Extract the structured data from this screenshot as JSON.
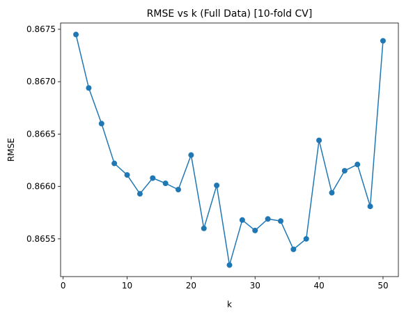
{
  "chart_data": {
    "type": "line",
    "title": "RMSE vs k (Full Data) [10-fold CV]",
    "xlabel": "k",
    "ylabel": "RMSE",
    "xlim": [
      -0.4,
      52.4
    ],
    "ylim": [
      0.86514,
      0.86756
    ],
    "xticks": [
      0,
      10,
      20,
      30,
      40,
      50
    ],
    "xtick_labels": [
      "0",
      "10",
      "20",
      "30",
      "40",
      "50"
    ],
    "yticks": [
      0.8655,
      0.866,
      0.8665,
      0.867,
      0.8675
    ],
    "ytick_labels": [
      "0.8655",
      "0.8660",
      "0.8665",
      "0.8670",
      "0.8675"
    ],
    "grid": false,
    "colors": {
      "series": "#1f77b4",
      "axes": "#000000"
    },
    "series": [
      {
        "x": [
          2,
          4,
          6,
          8,
          10,
          12,
          14,
          16,
          18,
          20,
          22,
          24,
          26,
          28,
          30,
          32,
          34,
          36,
          38,
          40,
          42,
          44,
          46,
          48,
          50
        ],
        "values": [
          0.86745,
          0.86694,
          0.8666,
          0.86622,
          0.86611,
          0.86593,
          0.86608,
          0.86603,
          0.86597,
          0.8663,
          0.8656,
          0.86601,
          0.86525,
          0.86568,
          0.86558,
          0.86569,
          0.86567,
          0.8654,
          0.8655,
          0.86644,
          0.86594,
          0.86615,
          0.86621,
          0.86581,
          0.86739
        ]
      }
    ]
  }
}
